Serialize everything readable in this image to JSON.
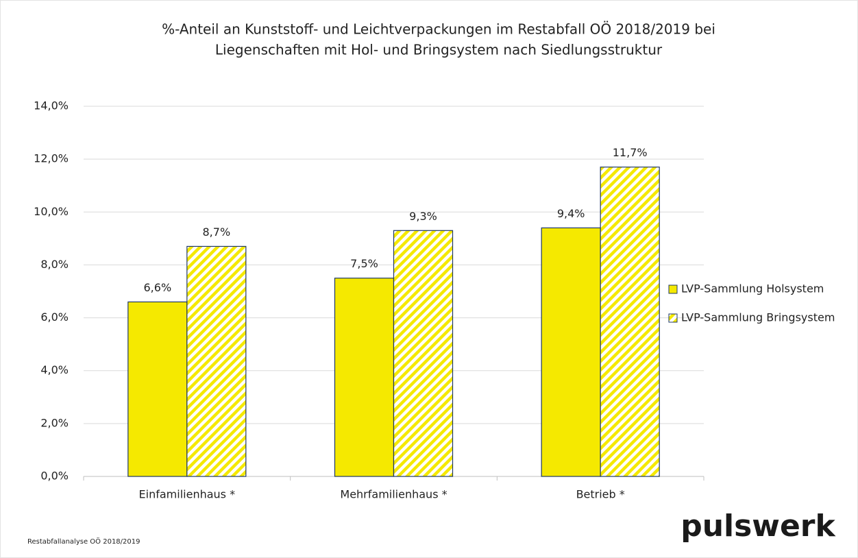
{
  "chart_data": {
    "type": "bar",
    "title": [
      "%-Anteil an Kunststoff-  und Leichtverpackungen im Restabfall OÖ 2018/2019 bei",
      "Liegenschaften mit Hol- und Bringsystem nach Siedlungsstruktur"
    ],
    "categories": [
      "Einfamilienhaus *",
      "Mehrfamilienhaus *",
      "Betrieb *"
    ],
    "series": [
      {
        "name": "LVP-Sammlung Holsystem",
        "color": "#f5e900",
        "pattern": "solid",
        "values": [
          6.6,
          7.5,
          9.4
        ],
        "value_labels": [
          "6,6%",
          "7,5%",
          "9,4%"
        ]
      },
      {
        "name": "LVP-Sammlung Bringsystem",
        "color": "#f5e900",
        "pattern": "hatch",
        "values": [
          8.7,
          9.3,
          11.7
        ],
        "value_labels": [
          "8,7%",
          "9,3%",
          "11,7%"
        ]
      }
    ],
    "ylim": [
      0,
      14
    ],
    "yticks": [
      {
        "value": 0,
        "label": "0,0%"
      },
      {
        "value": 2,
        "label": "2,0%"
      },
      {
        "value": 4,
        "label": "4,0%"
      },
      {
        "value": 6,
        "label": "6,0%"
      },
      {
        "value": 8,
        "label": "8,0%"
      },
      {
        "value": 10,
        "label": "10,0%"
      },
      {
        "value": 12,
        "label": "12,0%"
      },
      {
        "value": 14,
        "label": "14,0%"
      }
    ],
    "grid": true,
    "legend": "right",
    "source": "Restabfallanalyse OÖ 2018/2019",
    "logo": "pulswerk"
  }
}
